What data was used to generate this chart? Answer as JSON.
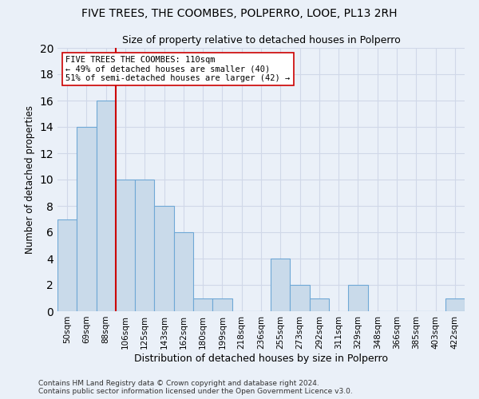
{
  "title_line1": "FIVE TREES, THE COOMBES, POLPERRO, LOOE, PL13 2RH",
  "title_line2": "Size of property relative to detached houses in Polperro",
  "xlabel": "Distribution of detached houses by size in Polperro",
  "ylabel": "Number of detached properties",
  "categories": [
    "50sqm",
    "69sqm",
    "88sqm",
    "106sqm",
    "125sqm",
    "143sqm",
    "162sqm",
    "180sqm",
    "199sqm",
    "218sqm",
    "236sqm",
    "255sqm",
    "273sqm",
    "292sqm",
    "311sqm",
    "329sqm",
    "348sqm",
    "366sqm",
    "385sqm",
    "403sqm",
    "422sqm"
  ],
  "values": [
    7,
    14,
    16,
    10,
    10,
    8,
    6,
    1,
    1,
    0,
    0,
    4,
    2,
    1,
    0,
    2,
    0,
    0,
    0,
    0,
    1
  ],
  "bar_color": "#c9daea",
  "bar_edge_color": "#6fa8d6",
  "bar_width": 1.0,
  "property_bin_index": 3,
  "property_label": "FIVE TREES THE COOMBES: 110sqm",
  "annotation_line2": "← 49% of detached houses are smaller (40)",
  "annotation_line3": "51% of semi-detached houses are larger (42) →",
  "vline_color": "#cc0000",
  "annotation_box_color": "#ffffff",
  "annotation_box_edge": "#cc0000",
  "ylim": [
    0,
    20
  ],
  "yticks": [
    0,
    2,
    4,
    6,
    8,
    10,
    12,
    14,
    16,
    18,
    20
  ],
  "grid_color": "#d0d8e8",
  "background_color": "#eaf0f8",
  "footnote1": "Contains HM Land Registry data © Crown copyright and database right 2024.",
  "footnote2": "Contains public sector information licensed under the Open Government Licence v3.0."
}
